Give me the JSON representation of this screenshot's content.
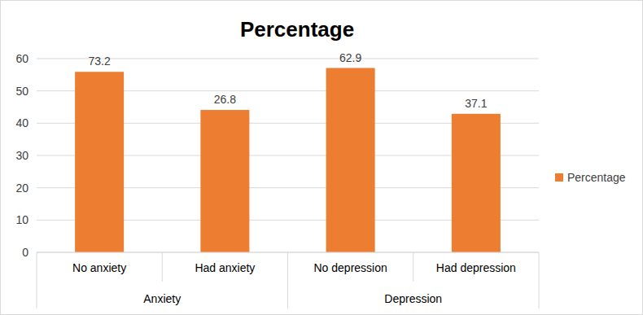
{
  "chart_data": {
    "type": "bar",
    "title": "Percentage",
    "categories": [
      "No anxiety",
      "Had anxiety",
      "No depression",
      "Had depression"
    ],
    "groups": [
      "Anxiety",
      "Anxiety",
      "Depression",
      "Depression"
    ],
    "series": [
      {
        "name": "Percentage",
        "color": "#ed7d31",
        "values": [
          55.9,
          44.1,
          57.1,
          42.9
        ]
      }
    ],
    "annotations": [
      "73.2",
      "26.8",
      "62.9",
      "37.1"
    ],
    "ylim": [
      0,
      60
    ],
    "yticks": [
      0,
      10,
      20,
      30,
      40,
      50,
      60
    ],
    "grid": true,
    "legend": "right"
  }
}
